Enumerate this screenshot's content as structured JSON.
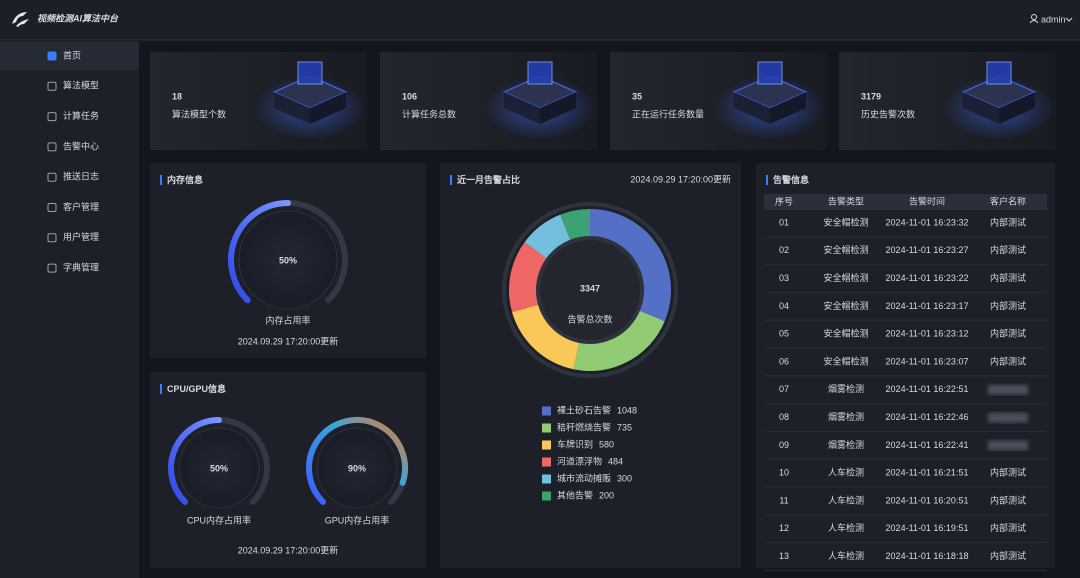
{
  "header": {
    "title": "视频检测AI算法中台",
    "user": "admin"
  },
  "sidebar": {
    "items": [
      "首页",
      "算法模型",
      "计算任务",
      "告警中心",
      "推送日志",
      "客户管理",
      "用户管理",
      "字典管理"
    ],
    "active": 0
  },
  "stats": [
    {
      "value": 18,
      "label": "算法模型个数"
    },
    {
      "value": 106,
      "label": "计算任务总数"
    },
    {
      "value": 35,
      "label": "正在运行任务数量"
    },
    {
      "value": 3179,
      "label": "历史告警次数"
    }
  ],
  "memory": {
    "title": "内存信息",
    "lim": [
      0,
      100
    ],
    "gauge": {
      "value": 50,
      "value_label": "50%",
      "label": "内存占用率"
    },
    "updated": "2024.09.29 17:20:00更新"
  },
  "cpu_gpu": {
    "title": "CPU/GPU信息",
    "lim": [
      0,
      100
    ],
    "gauges": [
      {
        "value": 50,
        "value_label": "50%",
        "label": "CPU内存占用率"
      },
      {
        "value": 90,
        "value_label": "90%",
        "label": "GPU内存占用率"
      }
    ],
    "updated": "2024.09.29 17:20:00更新"
  },
  "alarm_share": {
    "title": "近一月告警占比",
    "updated": "2024.09.29 17:20:00更新",
    "type": "donut",
    "total": 3347,
    "total_label": "告警总次数",
    "series": [
      {
        "name": "裸土砂石告警",
        "value": 1048,
        "color": "#5470c6"
      },
      {
        "name": "秸秆燃烧告警",
        "value": 735,
        "color": "#91cc75"
      },
      {
        "name": "车牌识别",
        "value": 580,
        "color": "#fac858"
      },
      {
        "name": "河道漂浮物",
        "value": 484,
        "color": "#ee6666"
      },
      {
        "name": "城市流动摊贩",
        "value": 300,
        "color": "#73c0de"
      },
      {
        "name": "其他告警",
        "value": 200,
        "color": "#3ba272"
      }
    ]
  },
  "alarm_info": {
    "title": "告警信息",
    "columns": [
      "序号",
      "告警类型",
      "告警时间",
      "客户名称"
    ],
    "rows": [
      [
        "01",
        "安全帽检测",
        "2024-11-01 16:23:32",
        "内部测试"
      ],
      [
        "02",
        "安全帽检测",
        "2024-11-01 16:23:27",
        "内部测试"
      ],
      [
        "03",
        "安全帽检测",
        "2024-11-01 16:23:22",
        "内部测试"
      ],
      [
        "04",
        "安全帽检测",
        "2024-11-01 16:23:17",
        "内部测试"
      ],
      [
        "05",
        "安全帽检测",
        "2024-11-01 16:23:12",
        "内部测试"
      ],
      [
        "06",
        "安全帽检测",
        "2024-11-01 16:23:07",
        "内部测试"
      ],
      [
        "07",
        "烟雾检测",
        "2024-11-01 16:22:51",
        null
      ],
      [
        "08",
        "烟雾检测",
        "2024-11-01 16:22:46",
        null
      ],
      [
        "09",
        "烟雾检测",
        "2024-11-01 16:22:41",
        null
      ],
      [
        "10",
        "人车检测",
        "2024-11-01 16:21:51",
        "内部测试"
      ],
      [
        "11",
        "人车检测",
        "2024-11-01 16:20:51",
        "内部测试"
      ],
      [
        "12",
        "人车检测",
        "2024-11-01 16:19:51",
        "内部测试"
      ],
      [
        "13",
        "人车检测",
        "2024-11-01 16:18:18",
        "内部测试"
      ]
    ]
  }
}
